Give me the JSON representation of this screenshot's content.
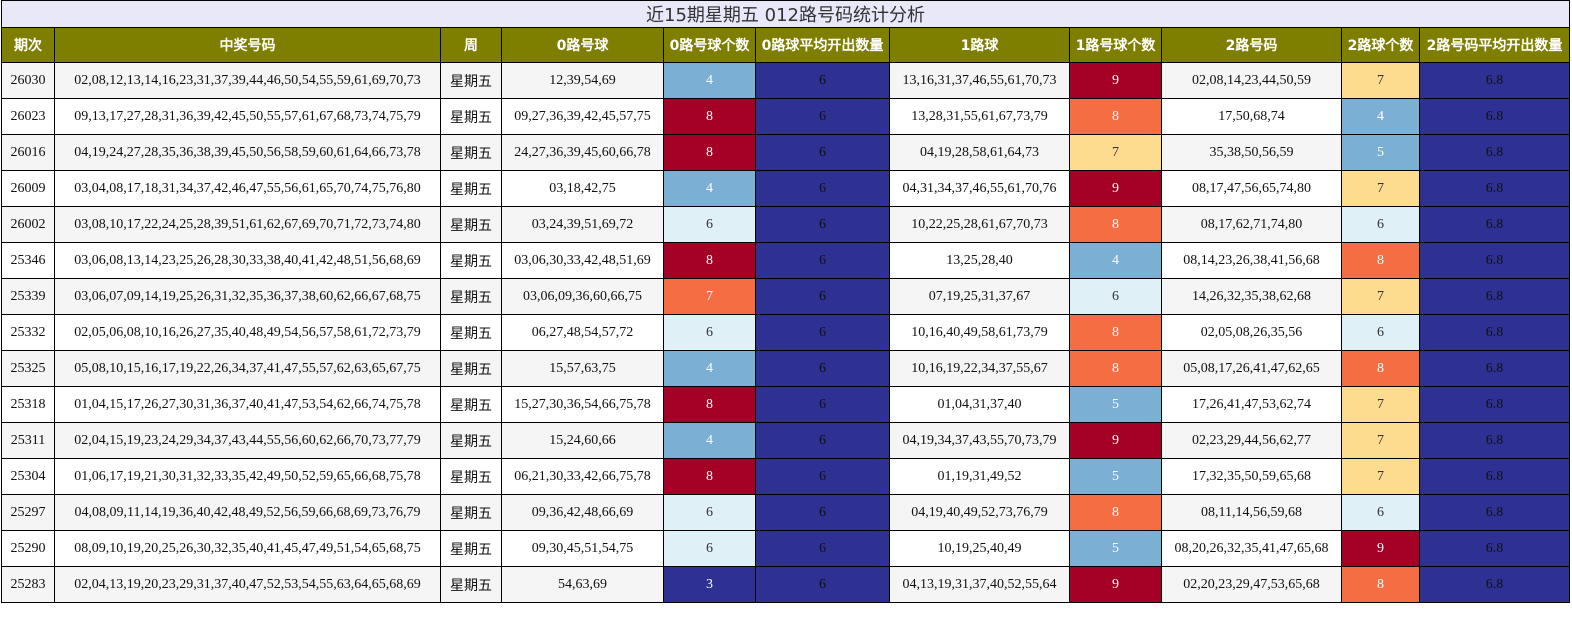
{
  "title": "近15期星期五 012路号码统计分析",
  "headers": [
    "期次",
    "中奖号码",
    "周",
    "0路号球",
    "0路号球个数",
    "0路球平均开出数量",
    "1路球",
    "1路号球个数",
    "2路号码",
    "2路球个数",
    "2路号码平均开出数量"
  ],
  "colors": {
    "header_bg": "#7e7e00",
    "title_bg": "#e8e8f8",
    "count_3": "#2e3192",
    "count_4": "#7bafd4",
    "count_5": "#7bafd4",
    "count_6": "#dff1f7",
    "count_7": "#fddc8f",
    "count_8": "#f46d43",
    "count_9": "#a50026",
    "avg_bg": "#2e3192"
  },
  "rows": [
    {
      "issue": "26030",
      "numbers": "02,08,12,13,14,16,23,31,37,39,44,46,50,54,55,59,61,69,70,73",
      "week": "星期五",
      "r0": "12,39,54,69",
      "c0": "4",
      "a0": "6",
      "r1": "13,16,31,37,46,55,61,70,73",
      "c1": "9",
      "r2": "02,08,14,23,44,50,59",
      "c2": "7",
      "a2": "6.8"
    },
    {
      "issue": "26023",
      "numbers": "09,13,17,27,28,31,36,39,42,45,50,55,57,61,67,68,73,74,75,79",
      "week": "星期五",
      "r0": "09,27,36,39,42,45,57,75",
      "c0": "8",
      "a0": "6",
      "r1": "13,28,31,55,61,67,73,79",
      "c1": "8",
      "r2": "17,50,68,74",
      "c2": "4",
      "a2": "6.8"
    },
    {
      "issue": "26016",
      "numbers": "04,19,24,27,28,35,36,38,39,45,50,56,58,59,60,61,64,66,73,78",
      "week": "星期五",
      "r0": "24,27,36,39,45,60,66,78",
      "c0": "8",
      "a0": "6",
      "r1": "04,19,28,58,61,64,73",
      "c1": "7",
      "r2": "35,38,50,56,59",
      "c2": "5",
      "a2": "6.8"
    },
    {
      "issue": "26009",
      "numbers": "03,04,08,17,18,31,34,37,42,46,47,55,56,61,65,70,74,75,76,80",
      "week": "星期五",
      "r0": "03,18,42,75",
      "c0": "4",
      "a0": "6",
      "r1": "04,31,34,37,46,55,61,70,76",
      "c1": "9",
      "r2": "08,17,47,56,65,74,80",
      "c2": "7",
      "a2": "6.8"
    },
    {
      "issue": "26002",
      "numbers": "03,08,10,17,22,24,25,28,39,51,61,62,67,69,70,71,72,73,74,80",
      "week": "星期五",
      "r0": "03,24,39,51,69,72",
      "c0": "6",
      "a0": "6",
      "r1": "10,22,25,28,61,67,70,73",
      "c1": "8",
      "r2": "08,17,62,71,74,80",
      "c2": "6",
      "a2": "6.8"
    },
    {
      "issue": "25346",
      "numbers": "03,06,08,13,14,23,25,26,28,30,33,38,40,41,42,48,51,56,68,69",
      "week": "星期五",
      "r0": "03,06,30,33,42,48,51,69",
      "c0": "8",
      "a0": "6",
      "r1": "13,25,28,40",
      "c1": "4",
      "r2": "08,14,23,26,38,41,56,68",
      "c2": "8",
      "a2": "6.8"
    },
    {
      "issue": "25339",
      "numbers": "03,06,07,09,14,19,25,26,31,32,35,36,37,38,60,62,66,67,68,75",
      "week": "星期五",
      "r0": "03,06,09,36,60,66,75",
      "c0": "7",
      "a0": "6",
      "r1": "07,19,25,31,37,67",
      "c1": "6",
      "r2": "14,26,32,35,38,62,68",
      "c2": "7",
      "a2": "6.8"
    },
    {
      "issue": "25332",
      "numbers": "02,05,06,08,10,16,26,27,35,40,48,49,54,56,57,58,61,72,73,79",
      "week": "星期五",
      "r0": "06,27,48,54,57,72",
      "c0": "6",
      "a0": "6",
      "r1": "10,16,40,49,58,61,73,79",
      "c1": "8",
      "r2": "02,05,08,26,35,56",
      "c2": "6",
      "a2": "6.8"
    },
    {
      "issue": "25325",
      "numbers": "05,08,10,15,16,17,19,22,26,34,37,41,47,55,57,62,63,65,67,75",
      "week": "星期五",
      "r0": "15,57,63,75",
      "c0": "4",
      "a0": "6",
      "r1": "10,16,19,22,34,37,55,67",
      "c1": "8",
      "r2": "05,08,17,26,41,47,62,65",
      "c2": "8",
      "a2": "6.8"
    },
    {
      "issue": "25318",
      "numbers": "01,04,15,17,26,27,30,31,36,37,40,41,47,53,54,62,66,74,75,78",
      "week": "星期五",
      "r0": "15,27,30,36,54,66,75,78",
      "c0": "8",
      "a0": "6",
      "r1": "01,04,31,37,40",
      "c1": "5",
      "r2": "17,26,41,47,53,62,74",
      "c2": "7",
      "a2": "6.8"
    },
    {
      "issue": "25311",
      "numbers": "02,04,15,19,23,24,29,34,37,43,44,55,56,60,62,66,70,73,77,79",
      "week": "星期五",
      "r0": "15,24,60,66",
      "c0": "4",
      "a0": "6",
      "r1": "04,19,34,37,43,55,70,73,79",
      "c1": "9",
      "r2": "02,23,29,44,56,62,77",
      "c2": "7",
      "a2": "6.8"
    },
    {
      "issue": "25304",
      "numbers": "01,06,17,19,21,30,31,32,33,35,42,49,50,52,59,65,66,68,75,78",
      "week": "星期五",
      "r0": "06,21,30,33,42,66,75,78",
      "c0": "8",
      "a0": "6",
      "r1": "01,19,31,49,52",
      "c1": "5",
      "r2": "17,32,35,50,59,65,68",
      "c2": "7",
      "a2": "6.8"
    },
    {
      "issue": "25297",
      "numbers": "04,08,09,11,14,19,36,40,42,48,49,52,56,59,66,68,69,73,76,79",
      "week": "星期五",
      "r0": "09,36,42,48,66,69",
      "c0": "6",
      "a0": "6",
      "r1": "04,19,40,49,52,73,76,79",
      "c1": "8",
      "r2": "08,11,14,56,59,68",
      "c2": "6",
      "a2": "6.8"
    },
    {
      "issue": "25290",
      "numbers": "08,09,10,19,20,25,26,30,32,35,40,41,45,47,49,51,54,65,68,75",
      "week": "星期五",
      "r0": "09,30,45,51,54,75",
      "c0": "6",
      "a0": "6",
      "r1": "10,19,25,40,49",
      "c1": "5",
      "r2": "08,20,26,32,35,41,47,65,68",
      "c2": "9",
      "a2": "6.8"
    },
    {
      "issue": "25283",
      "numbers": "02,04,13,19,20,23,29,31,37,40,47,52,53,54,55,63,64,65,68,69",
      "week": "星期五",
      "r0": "54,63,69",
      "c0": "3",
      "a0": "6",
      "r1": "04,13,19,31,37,40,52,55,64",
      "c1": "9",
      "r2": "02,20,23,29,47,53,65,68",
      "c2": "8",
      "a2": "6.8"
    }
  ]
}
